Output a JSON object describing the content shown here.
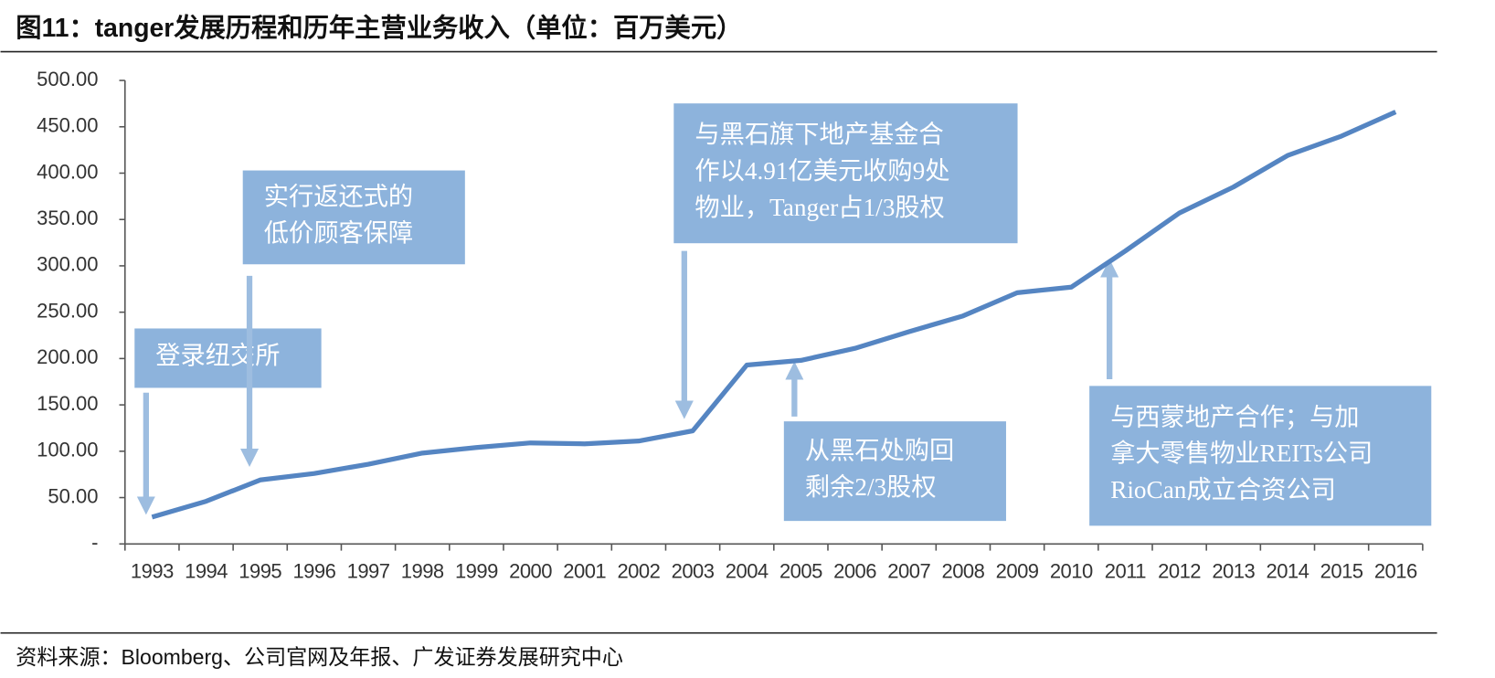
{
  "chart_data": {
    "type": "line",
    "title": "图11：tanger发展历程和历年主营业务收入（单位：百万美元）",
    "source": "资料来源：Bloomberg、公司官网及年报、广发证券发展研究中心",
    "categories": [
      "1993",
      "1994",
      "1995",
      "1996",
      "1997",
      "1998",
      "1999",
      "2000",
      "2001",
      "2002",
      "2003",
      "2004",
      "2005",
      "2006",
      "2007",
      "2008",
      "2009",
      "2010",
      "2011",
      "2012",
      "2013",
      "2014",
      "2015",
      "2016"
    ],
    "series": [
      {
        "name": "主营业务收入",
        "color": "#5585c2",
        "values": [
          29,
          46,
          69,
          76,
          86,
          98,
          104,
          109,
          108,
          111,
          122,
          193,
          198,
          211,
          229,
          246,
          271,
          277,
          316,
          357,
          385,
          419,
          440,
          466
        ]
      }
    ],
    "ylim": [
      0,
      500
    ],
    "yticks": [
      {
        "value": 0,
        "label": "-"
      },
      {
        "value": 50,
        "label": "50.00"
      },
      {
        "value": 100,
        "label": "100.00"
      },
      {
        "value": 150,
        "label": "150.00"
      },
      {
        "value": 200,
        "label": "200.00"
      },
      {
        "value": 250,
        "label": "250.00"
      },
      {
        "value": 300,
        "label": "300.00"
      },
      {
        "value": 350,
        "label": "350.00"
      },
      {
        "value": 400,
        "label": "400.00"
      },
      {
        "value": 450,
        "label": "450.00"
      },
      {
        "value": 500,
        "label": "500.00"
      }
    ],
    "annotations": [
      {
        "lines": [
          "登录纽交所"
        ]
      },
      {
        "lines": [
          "实行返还式的",
          "低价顾客保障"
        ]
      },
      {
        "lines": [
          "与黑石旗下地产基金合",
          "作以4.91亿美元收购9处",
          "物业，Tanger占1/3股权"
        ]
      },
      {
        "lines": [
          "从黑石处购回",
          "剩余2/3股权"
        ]
      },
      {
        "lines": [
          "与西蒙地产合作；与加",
          "拿大零售物业REITs公司",
          "RioCan成立合资公司"
        ]
      }
    ]
  }
}
